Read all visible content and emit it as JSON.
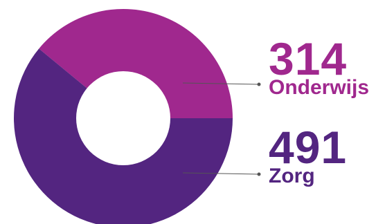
{
  "chart_data": {
    "type": "pie",
    "donut": true,
    "slices": [
      {
        "label": "Onderwijs",
        "value": 314,
        "color": "#A0288E"
      },
      {
        "label": "Zorg",
        "value": 491,
        "color": "#532580"
      }
    ],
    "hole_color": "#FFFFFF",
    "leader_line_color": "#555555"
  },
  "labels": {
    "onderwijs": {
      "value": "314",
      "name": "Onderwijs"
    },
    "zorg": {
      "value": "491",
      "name": "Zorg"
    }
  }
}
